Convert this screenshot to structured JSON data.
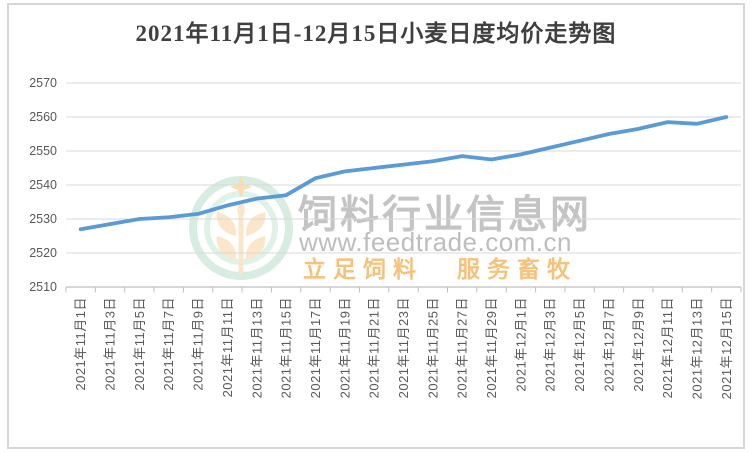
{
  "watermark": {
    "site_name": "饲料行业信息网",
    "url": "www.feedtrade.com.cn",
    "slogan_left": "立足饲料",
    "slogan_right": "服务畜牧"
  },
  "colors": {
    "line": "#5B9BD5",
    "gridline": "#D9D9D9",
    "axis": "#BFBFBF",
    "title_text": "#3F3F3F",
    "tick_text": "#595959",
    "logo_green": "#CDE8D8",
    "logo_wheat": "#FBE3C2",
    "logo_sparkle": "#F7D9A6",
    "watermark_gray": "#7D7D7D",
    "watermark_orange": "#F2AD50"
  },
  "chart_data": {
    "type": "line",
    "title": "2021年11月1日-12月15日小麦日度均价走势图",
    "categories": [
      "2021年11月1日",
      "2021年11月3日",
      "2021年11月5日",
      "2021年11月7日",
      "2021年11月9日",
      "2021年11月11日",
      "2021年11月13日",
      "2021年11月15日",
      "2021年11月17日",
      "2021年11月19日",
      "2021年11月21日",
      "2021年11月23日",
      "2021年11月25日",
      "2021年11月27日",
      "2021年11月29日",
      "2021年12月1日",
      "2021年12月3日",
      "2021年12月5日",
      "2021年12月7日",
      "2021年12月9日",
      "2021年12月11日",
      "2021年12月13日",
      "2021年12月15日"
    ],
    "values": [
      2527,
      2528.5,
      2530,
      2530.5,
      2531.5,
      2534,
      2536,
      2537,
      2542,
      2544,
      2545,
      2546,
      2547,
      2548.5,
      2547.5,
      2549,
      2551,
      2553,
      2555,
      2556.5,
      2558.5,
      2558,
      2560
    ],
    "series_name": "小麦日度均价",
    "xlabel": "",
    "ylabel": "",
    "ylim": [
      2510,
      2570
    ],
    "y_ticks": [
      2510,
      2520,
      2530,
      2540,
      2550,
      2560,
      2570
    ],
    "grid": true,
    "legend": false,
    "x_label_rotation": -90
  }
}
